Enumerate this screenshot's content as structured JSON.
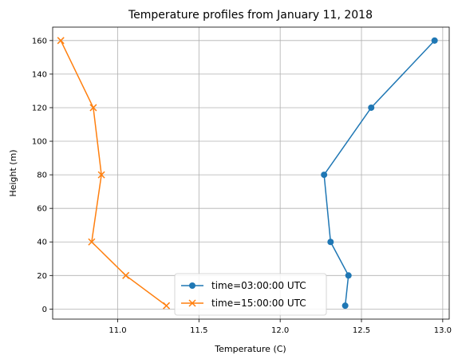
{
  "chart_data": {
    "type": "line",
    "title": "Temperature profiles from January 11, 2018",
    "xlabel": "Temperature (C)",
    "ylabel": "Height (m)",
    "xlim": [
      10.6,
      13.04
    ],
    "ylim": [
      -6,
      168
    ],
    "xticks": [
      "11.0",
      "11.5",
      "12.0",
      "12.5",
      "13.0"
    ],
    "xtick_values": [
      11.0,
      11.5,
      12.0,
      12.5,
      13.0
    ],
    "yticks": [
      "0",
      "20",
      "40",
      "60",
      "80",
      "100",
      "120",
      "140",
      "160"
    ],
    "ytick_values": [
      0,
      20,
      40,
      60,
      80,
      100,
      120,
      140,
      160
    ],
    "grid": true,
    "legend_position": "bottom-center",
    "series": [
      {
        "name": "time=03:00:00 UTC",
        "color": "#1f77b4",
        "marker": "circle",
        "x": [
          12.4,
          12.42,
          12.31,
          12.27,
          12.56,
          12.95
        ],
        "y": [
          2,
          20,
          40,
          80,
          120,
          160
        ]
      },
      {
        "name": "time=15:00:00 UTC",
        "color": "#ff7f0e",
        "marker": "x",
        "x": [
          11.3,
          11.05,
          10.84,
          10.9,
          10.85,
          10.65
        ],
        "y": [
          2,
          20,
          40,
          80,
          120,
          160
        ]
      }
    ]
  }
}
